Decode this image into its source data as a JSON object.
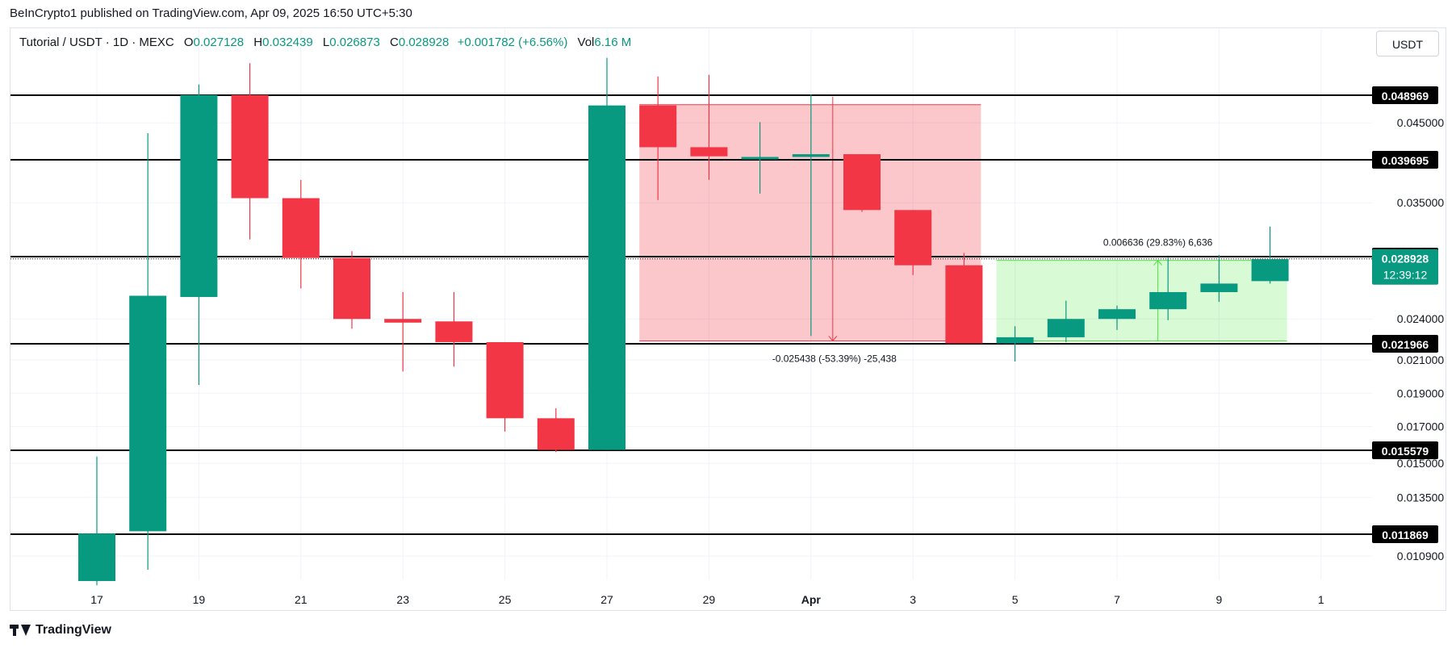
{
  "publisher_line": "BeInCrypto1 published on TradingView.com, Apr 09, 2025 16:50 UTC+5:30",
  "legend": {
    "symbol": "Tutorial / USDT · 1D · MEXC",
    "o_label": "O",
    "o_value": "0.027128",
    "h_label": "H",
    "h_value": "0.032439",
    "l_label": "L",
    "l_value": "0.026873",
    "c_label": "C",
    "c_value": "0.028928",
    "change": "+0.001782 (+6.56%)",
    "vol_label": "Vol",
    "vol_value": "6.16 M"
  },
  "unit_button": "USDT",
  "footer_brand": "TradingView",
  "colors": {
    "up": "#089981",
    "down": "#f23645",
    "grid": "#f0f3fa",
    "down_zone": "rgba(242,54,69,0.28)",
    "up_zone": "rgba(76,230,60,0.22)"
  },
  "chart_data": {
    "type": "candlestick",
    "ylim": [
      0.0095,
      0.052
    ],
    "x_ticks": [
      "17",
      "19",
      "21",
      "23",
      "25",
      "27",
      "29",
      "Apr",
      "3",
      "5",
      "7",
      "9",
      "1"
    ],
    "y_ticks": [
      "0.045000",
      "0.035000",
      "0.024000",
      "0.021000",
      "0.019000",
      "0.017000",
      "0.015000",
      "0.013500",
      "0.010900"
    ],
    "candles": [
      {
        "o": 0.0098,
        "h": 0.0153,
        "l": 0.0093,
        "c": 0.0119
      },
      {
        "o": 0.012,
        "h": 0.0435,
        "l": 0.0103,
        "c": 0.0259
      },
      {
        "o": 0.0258,
        "h": 0.051,
        "l": 0.0195,
        "c": 0.049
      },
      {
        "o": 0.049,
        "h": 0.055,
        "l": 0.031,
        "c": 0.0355
      },
      {
        "o": 0.0355,
        "h": 0.0375,
        "l": 0.0265,
        "c": 0.029
      },
      {
        "o": 0.029,
        "h": 0.0297,
        "l": 0.0232,
        "c": 0.024
      },
      {
        "o": 0.024,
        "h": 0.0262,
        "l": 0.0203,
        "c": 0.0237
      },
      {
        "o": 0.0238,
        "h": 0.0262,
        "l": 0.0206,
        "c": 0.0221
      },
      {
        "o": 0.0221,
        "h": 0.0221,
        "l": 0.0167,
        "c": 0.0175
      },
      {
        "o": 0.0175,
        "h": 0.0181,
        "l": 0.0155,
        "c": 0.0156
      },
      {
        "o": 0.0156,
        "h": 0.056,
        "l": 0.0156,
        "c": 0.0475
      },
      {
        "o": 0.0475,
        "h": 0.0525,
        "l": 0.0353,
        "c": 0.0415
      },
      {
        "o": 0.0415,
        "h": 0.0528,
        "l": 0.0375,
        "c": 0.0402
      },
      {
        "o": 0.04,
        "h": 0.0451,
        "l": 0.036,
        "c": 0.0401
      },
      {
        "o": 0.0401,
        "h": 0.0491,
        "l": 0.0226,
        "c": 0.0405
      },
      {
        "o": 0.0405,
        "h": 0.0405,
        "l": 0.034,
        "c": 0.0342
      },
      {
        "o": 0.0342,
        "h": 0.0342,
        "l": 0.0276,
        "c": 0.0284
      },
      {
        "o": 0.0284,
        "h": 0.0295,
        "l": 0.022,
        "c": 0.022
      },
      {
        "o": 0.022,
        "h": 0.0234,
        "l": 0.0209,
        "c": 0.0225
      },
      {
        "o": 0.0225,
        "h": 0.0255,
        "l": 0.0221,
        "c": 0.024
      },
      {
        "o": 0.024,
        "h": 0.0251,
        "l": 0.0231,
        "c": 0.0248
      },
      {
        "o": 0.0248,
        "h": 0.0291,
        "l": 0.0239,
        "c": 0.0262
      },
      {
        "o": 0.0262,
        "h": 0.0293,
        "l": 0.0254,
        "c": 0.0269
      },
      {
        "o": 0.0271,
        "h": 0.0324,
        "l": 0.0269,
        "c": 0.0289
      }
    ],
    "horizontal_levels": [
      {
        "value": 0.048969,
        "label": "0.048969"
      },
      {
        "value": 0.039695,
        "label": "0.039695"
      },
      {
        "value": 0.029109,
        "label": "0.029109"
      },
      {
        "value": 0.021966,
        "label": "0.021966"
      },
      {
        "value": 0.015579,
        "label": "0.015579"
      },
      {
        "value": 0.011869,
        "label": "0.011869"
      }
    ],
    "current_price": {
      "value": 0.028928,
      "label": "0.028928",
      "countdown": "12:39:12"
    },
    "measurements": [
      {
        "from_index": 11,
        "to_index": 17,
        "top": 0.0476,
        "bottom": 0.0222,
        "text": "-0.025438 (-53.39%) -25,438",
        "direction": "down"
      },
      {
        "from_index": 18,
        "to_index": 23,
        "top": 0.0288,
        "bottom": 0.0222,
        "text": "0.006636 (29.83%) 6,636",
        "direction": "up"
      }
    ]
  }
}
